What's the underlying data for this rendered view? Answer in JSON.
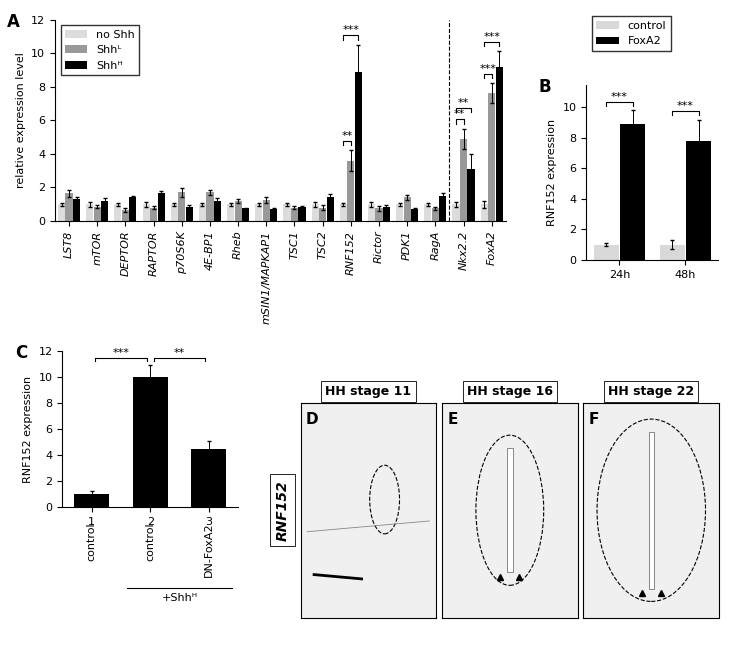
{
  "chart_data": [
    {
      "panel": "A",
      "type": "bar",
      "ylabel": "relative expression level",
      "legend": "upper left",
      "categories": [
        "LST8",
        "mTOR",
        "DEPTOR",
        "RAPTOR",
        "p70S6K",
        "4E-BP1",
        "Rheb",
        "mSIN1/MAPKAP1",
        "TSC1",
        "TSC2",
        "RNF152",
        "Rictor",
        "PDK1",
        "RagA",
        "Nkx2.2",
        "FoxA2"
      ],
      "series": [
        {
          "name": "no Shh",
          "color": "#dcdcdc",
          "values": [
            1.0,
            1.0,
            1.0,
            1.0,
            1.0,
            1.0,
            1.0,
            1.0,
            1.0,
            1.0,
            1.0,
            1.0,
            1.0,
            1.0,
            1.0,
            1.0
          ],
          "errors": [
            0.1,
            0.15,
            0.1,
            0.15,
            0.1,
            0.1,
            0.1,
            0.1,
            0.1,
            0.15,
            0.1,
            0.15,
            0.1,
            0.1,
            0.15,
            0.2
          ]
        },
        {
          "name": "Shhᴸ",
          "color": "#999999",
          "values": [
            1.65,
            0.85,
            0.65,
            0.8,
            1.7,
            1.7,
            1.2,
            1.25,
            0.8,
            0.8,
            3.6,
            0.75,
            1.4,
            0.75,
            4.9,
            7.6
          ],
          "errors": [
            0.2,
            0.1,
            0.1,
            0.1,
            0.25,
            0.15,
            0.1,
            0.15,
            0.1,
            0.15,
            0.6,
            0.15,
            0.15,
            0.1,
            0.6,
            0.6
          ]
        },
        {
          "name": "Shhᴴ",
          "color": "#000000",
          "values": [
            1.3,
            1.2,
            1.4,
            1.65,
            0.85,
            1.2,
            0.75,
            0.7,
            0.85,
            1.4,
            8.9,
            0.85,
            0.7,
            1.5,
            3.1,
            9.2
          ],
          "errors": [
            0.15,
            0.15,
            0.1,
            0.15,
            0.1,
            0.15,
            0.05,
            0.1,
            0.05,
            0.2,
            1.6,
            0.1,
            0.1,
            0.15,
            0.9,
            0.9
          ]
        }
      ],
      "significance": [
        {
          "category": "RNF152",
          "series": [
            "no Shh",
            "Shhᴸ"
          ],
          "label": "**"
        },
        {
          "category": "RNF152",
          "series": [
            "no Shh",
            "Shhᴴ"
          ],
          "label": "***"
        },
        {
          "category": "Nkx2.2",
          "series": [
            "no Shh",
            "Shhᴸ"
          ],
          "label": "**"
        },
        {
          "category": "Nkx2.2",
          "series": [
            "no Shh",
            "Shhᴴ"
          ],
          "label": "**"
        },
        {
          "category": "FoxA2",
          "series": [
            "no Shh",
            "Shhᴸ"
          ],
          "label": "***"
        },
        {
          "category": "FoxA2",
          "series": [
            "no Shh",
            "Shhᴴ"
          ],
          "label": "***"
        }
      ],
      "ylim": [
        0,
        12
      ],
      "yticks": [
        0,
        2,
        4,
        6,
        8,
        10,
        12
      ]
    },
    {
      "panel": "B",
      "type": "bar",
      "ylabel": "RNF152 expression",
      "legend": "upper left",
      "categories": [
        "24h",
        "48h"
      ],
      "series": [
        {
          "name": "control",
          "color": "#d9d9d9",
          "values": [
            1.0,
            1.0
          ],
          "errors": [
            0.1,
            0.3
          ]
        },
        {
          "name": "FoxA2",
          "color": "#000000",
          "values": [
            8.9,
            7.8
          ],
          "errors": [
            0.9,
            1.4
          ]
        }
      ],
      "significance": [
        {
          "category": "24h",
          "series": [
            "control",
            "FoxA2"
          ],
          "label": "***"
        },
        {
          "category": "48h",
          "series": [
            "control",
            "FoxA2"
          ],
          "label": "***"
        }
      ],
      "ylim": [
        0,
        11.5
      ],
      "yticks": [
        0,
        2,
        4,
        6,
        8,
        10
      ]
    },
    {
      "panel": "C",
      "type": "bar",
      "ylabel": "RNF152 expression",
      "categories": [
        "1",
        "2",
        "3"
      ],
      "x_sublabels": [
        "control",
        "control",
        "DN-FoxA2"
      ],
      "group_label": "+Shhᴴ",
      "group_categories": [
        "2",
        "3"
      ],
      "series": [
        {
          "color": "#000000",
          "values": [
            1.0,
            10.0,
            4.5
          ],
          "errors": [
            0.2,
            0.9,
            0.6
          ]
        }
      ],
      "significance": [
        {
          "categories": [
            "1",
            "2"
          ],
          "label": "***"
        },
        {
          "categories": [
            "2",
            "3"
          ],
          "label": "**"
        }
      ],
      "ylim": [
        0,
        12
      ],
      "yticks": [
        0,
        2,
        4,
        6,
        8,
        10,
        12
      ]
    }
  ],
  "image_panels": {
    "row_label": "RNF152",
    "panels": [
      {
        "letter": "D",
        "title": "HH stage 11"
      },
      {
        "letter": "E",
        "title": "HH stage 16"
      },
      {
        "letter": "F",
        "title": "HH stage 22"
      }
    ]
  }
}
